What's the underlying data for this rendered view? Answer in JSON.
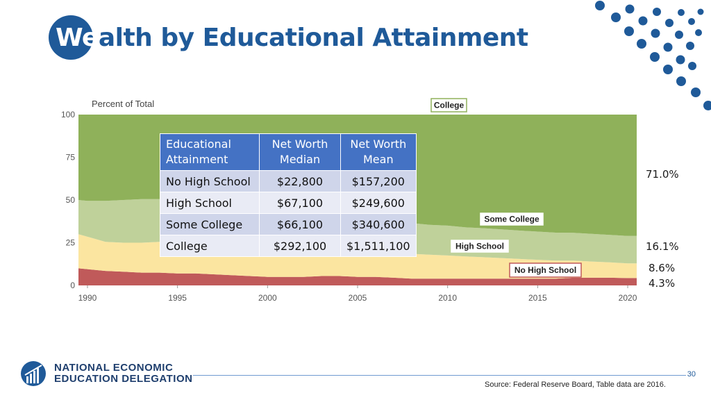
{
  "slide": {
    "title_lead": "We",
    "title_rest": "alth by Educational Attainment",
    "page_number": "30",
    "source": "Source:  Federal Reserve Board, Table data are 2016.",
    "logo_line1": "NATIONAL ECONOMIC",
    "logo_line2": "EDUCATION DELEGATION"
  },
  "colors": {
    "brand_blue": "#1f5a99",
    "college": "#8fb15a",
    "some_college": "#bfd19a",
    "high_school": "#fbe5a0",
    "no_high_school": "#c05a5a",
    "table_header": "#4472c4"
  },
  "table": {
    "headers": [
      "Educational Attainment",
      "Net Worth Median",
      "Net Worth Mean"
    ],
    "rows": [
      [
        "No High School",
        "$22,800",
        "$157,200"
      ],
      [
        "High School",
        "$67,100",
        "$249,600"
      ],
      [
        "Some College",
        "$66,100",
        "$340,600"
      ],
      [
        "College",
        "$292,100",
        "$1,511,100"
      ]
    ]
  },
  "right_labels": [
    "71.0%",
    "16.1%",
    "8.6%",
    "4.3%"
  ],
  "chart_data": {
    "type": "area",
    "stacked": true,
    "ylabel": "Percent of Total",
    "ylim": [
      0,
      100
    ],
    "yticks": [
      0,
      25,
      50,
      75,
      100
    ],
    "xlim": [
      1989.5,
      2020.5
    ],
    "xticks": [
      1990,
      1995,
      2000,
      2005,
      2010,
      2015,
      2020
    ],
    "grid": false,
    "x": [
      1989.5,
      1990,
      1991,
      1992,
      1993,
      1994,
      1995,
      1996,
      1997,
      1998,
      1999,
      2000,
      2001,
      2002,
      2003,
      2004,
      2005,
      2006,
      2007,
      2008,
      2009,
      2010,
      2011,
      2012,
      2013,
      2014,
      2015,
      2016,
      2017,
      2018,
      2019,
      2020,
      2020.5
    ],
    "series": [
      {
        "name": "No High School",
        "values": [
          10,
          9.5,
          8.5,
          8,
          7.5,
          7.5,
          7,
          7,
          6.5,
          6,
          5.5,
          5,
          5,
          5,
          5.5,
          5.5,
          5,
          5,
          4.5,
          4,
          4,
          4,
          4,
          4,
          4,
          4,
          4,
          4,
          4.5,
          4.5,
          4.5,
          4.3,
          4.3
        ]
      },
      {
        "name": "High School",
        "values": [
          20,
          19,
          17,
          17,
          17.5,
          18,
          18.5,
          19,
          19,
          18.5,
          18,
          17.5,
          17.5,
          17,
          17,
          16.5,
          16,
          15.5,
          15,
          14.5,
          14,
          13.5,
          13,
          12.5,
          12,
          11.5,
          11,
          10.5,
          10,
          9.5,
          9,
          8.6,
          8.6
        ]
      },
      {
        "name": "Some College",
        "values": [
          20,
          21,
          24,
          25,
          25.5,
          25,
          24.5,
          24,
          23.5,
          23,
          22.5,
          22,
          21.5,
          21,
          20.5,
          20,
          19.5,
          19,
          18.5,
          18,
          17.5,
          17.5,
          17,
          17,
          16.8,
          16.6,
          16.5,
          16.4,
          16.3,
          16.2,
          16.1,
          16.1,
          16.1
        ]
      },
      {
        "name": "College",
        "values": [
          50,
          50.5,
          50.5,
          50,
          49.5,
          49.5,
          50,
          50,
          51,
          52.5,
          54,
          55.5,
          56,
          57,
          57,
          58,
          59.5,
          60.5,
          62,
          63.5,
          64.5,
          65,
          66,
          66.5,
          67.2,
          67.9,
          68.5,
          69.1,
          69.2,
          69.8,
          70.4,
          71,
          71
        ]
      }
    ],
    "annotations": [
      "College",
      "Some College",
      "High School",
      "No High School"
    ]
  }
}
